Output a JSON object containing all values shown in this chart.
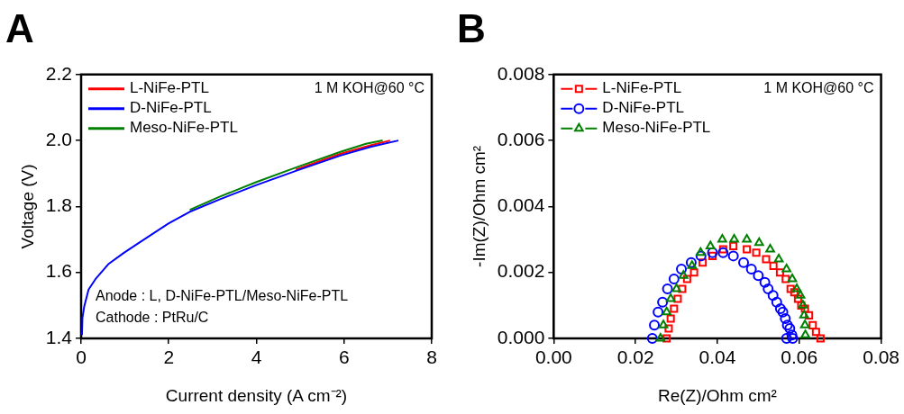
{
  "chart_data": [
    {
      "type": "line",
      "title": "A",
      "xlabel": "Current density (A cm⁻²)",
      "ylabel": "Voltage (V)",
      "xlim": [
        0,
        8
      ],
      "xticks": [
        0,
        2,
        4,
        6,
        8
      ],
      "ylim": [
        1.4,
        2.2
      ],
      "yticks": [
        {
          "value": 1.4,
          "label": "1.4"
        },
        {
          "value": 1.6,
          "label": "1.6"
        },
        {
          "value": 1.8,
          "label": "1.8"
        },
        {
          "value": 2.0,
          "label": "2.0"
        },
        {
          "value": 2.2,
          "label": "2.2"
        }
      ],
      "grid": false,
      "legend": "top left",
      "marker": "none",
      "line_style": "solid",
      "annotations": [
        "1 M KOH@60 °C",
        "Anode : L, D-NiFe-PTL/Meso-NiFe-PTL",
        "Cathode : PtRu/C"
      ],
      "series": [
        {
          "name": "L-NiFe-PTL",
          "color": "#ff0000",
          "x": [
            4.9,
            5.93,
            6.62,
            7.05
          ],
          "values": [
            1.912,
            1.96,
            1.986,
            2.0
          ]
        },
        {
          "name": "D-NiFe-PTL",
          "color": "#0000ff",
          "x": [
            0.02,
            0.03,
            0.07,
            0.17,
            0.34,
            0.62,
            0.97,
            1.31,
            2.0,
            2.48,
            3.17,
            4.0,
            4.9,
            5.93,
            6.62,
            7.24
          ],
          "values": [
            1.41,
            1.462,
            1.496,
            1.548,
            1.582,
            1.625,
            1.659,
            1.689,
            1.749,
            1.784,
            1.822,
            1.865,
            1.908,
            1.955,
            1.981,
            2.0
          ]
        },
        {
          "name": "Meso-NiFe-PTL",
          "color": "#008000",
          "x": [
            2.48,
            3.17,
            4.0,
            4.9,
            5.93,
            6.5,
            6.88
          ],
          "values": [
            1.79,
            1.83,
            1.874,
            1.918,
            1.966,
            1.99,
            2.0
          ]
        }
      ]
    },
    {
      "type": "scatter",
      "title": "B",
      "xlabel": "Re(Z)/Ohm cm²",
      "ylabel": "-Im(Z)/Ohm cm²",
      "xlim": [
        0,
        0.08
      ],
      "xticks": [
        {
          "value": 0,
          "label": "0.00"
        },
        {
          "value": 0.02,
          "label": "0.02"
        },
        {
          "value": 0.04,
          "label": "0.04"
        },
        {
          "value": 0.06,
          "label": "0.06"
        },
        {
          "value": 0.08,
          "label": "0.08"
        }
      ],
      "ylim": [
        0,
        0.008
      ],
      "yticks": [
        {
          "value": 0,
          "label": "0.000"
        },
        {
          "value": 0.002,
          "label": "0.002"
        },
        {
          "value": 0.004,
          "label": "0.004"
        },
        {
          "value": 0.006,
          "label": "0.006"
        },
        {
          "value": 0.008,
          "label": "0.008"
        }
      ],
      "grid": false,
      "legend": "top left",
      "annotations": [
        "1 M KOH@60 °C"
      ],
      "series": [
        {
          "name": "L-NiFe-PTL",
          "color": "#ff0000",
          "marker": "square",
          "x": [
            0.0276,
            0.0281,
            0.0286,
            0.0294,
            0.0303,
            0.0314,
            0.0326,
            0.0343,
            0.0364,
            0.0388,
            0.0414,
            0.0439,
            0.0472,
            0.0495,
            0.0519,
            0.0537,
            0.0553,
            0.0567,
            0.0579,
            0.0588,
            0.0597,
            0.0605,
            0.0614,
            0.0624,
            0.0633,
            0.0641,
            0.0652
          ],
          "values": [
            0,
            0.0003,
            0.0006,
            0.0009,
            0.0012,
            0.0015,
            0.0018,
            0.002,
            0.0023,
            0.0025,
            0.0027,
            0.0028,
            0.0027,
            0.0026,
            0.0024,
            0.0022,
            0.002,
            0.0018,
            0.0015,
            0.0014,
            0.0012,
            0.001,
            0.0009,
            0.0007,
            0.0004,
            0.0002,
            0
          ]
        },
        {
          "name": "D-NiFe-PTL",
          "color": "#0000ff",
          "marker": "circle",
          "x": [
            0.0241,
            0.0246,
            0.0255,
            0.0266,
            0.0278,
            0.0294,
            0.0312,
            0.0336,
            0.036,
            0.0388,
            0.0414,
            0.0439,
            0.0464,
            0.0483,
            0.05,
            0.0516,
            0.0524,
            0.0536,
            0.0545,
            0.0554,
            0.056,
            0.0566,
            0.0571,
            0.0577,
            0.0582,
            0.0569,
            0.0584
          ],
          "values": [
            0,
            0.0004,
            0.0008,
            0.0011,
            0.0015,
            0.0018,
            0.0021,
            0.0023,
            0.0025,
            0.0026,
            0.0026,
            0.0025,
            0.0023,
            0.0021,
            0.0019,
            0.0017,
            0.0015,
            0.0013,
            0.0011,
            0.0009,
            0.0008,
            0.0006,
            0.0004,
            0.0003,
            0.0001,
            0,
            0
          ]
        },
        {
          "name": "Meso-NiFe-PTL",
          "color": "#008000",
          "marker": "triangle",
          "x": [
            0.0261,
            0.0268,
            0.0276,
            0.0286,
            0.03,
            0.0317,
            0.0338,
            0.0359,
            0.0383,
            0.0412,
            0.0441,
            0.0472,
            0.0502,
            0.0529,
            0.055,
            0.0569,
            0.0583,
            0.0594,
            0.0603,
            0.0609,
            0.0612,
            0.0614,
            0.0615
          ],
          "values": [
            0,
            0.0004,
            0.0008,
            0.0012,
            0.0015,
            0.0019,
            0.0022,
            0.0026,
            0.0028,
            0.003,
            0.003,
            0.003,
            0.0029,
            0.0027,
            0.0024,
            0.0021,
            0.0018,
            0.0015,
            0.0013,
            0.001,
            0.0007,
            0.0004,
            0.0001
          ]
        }
      ]
    }
  ]
}
